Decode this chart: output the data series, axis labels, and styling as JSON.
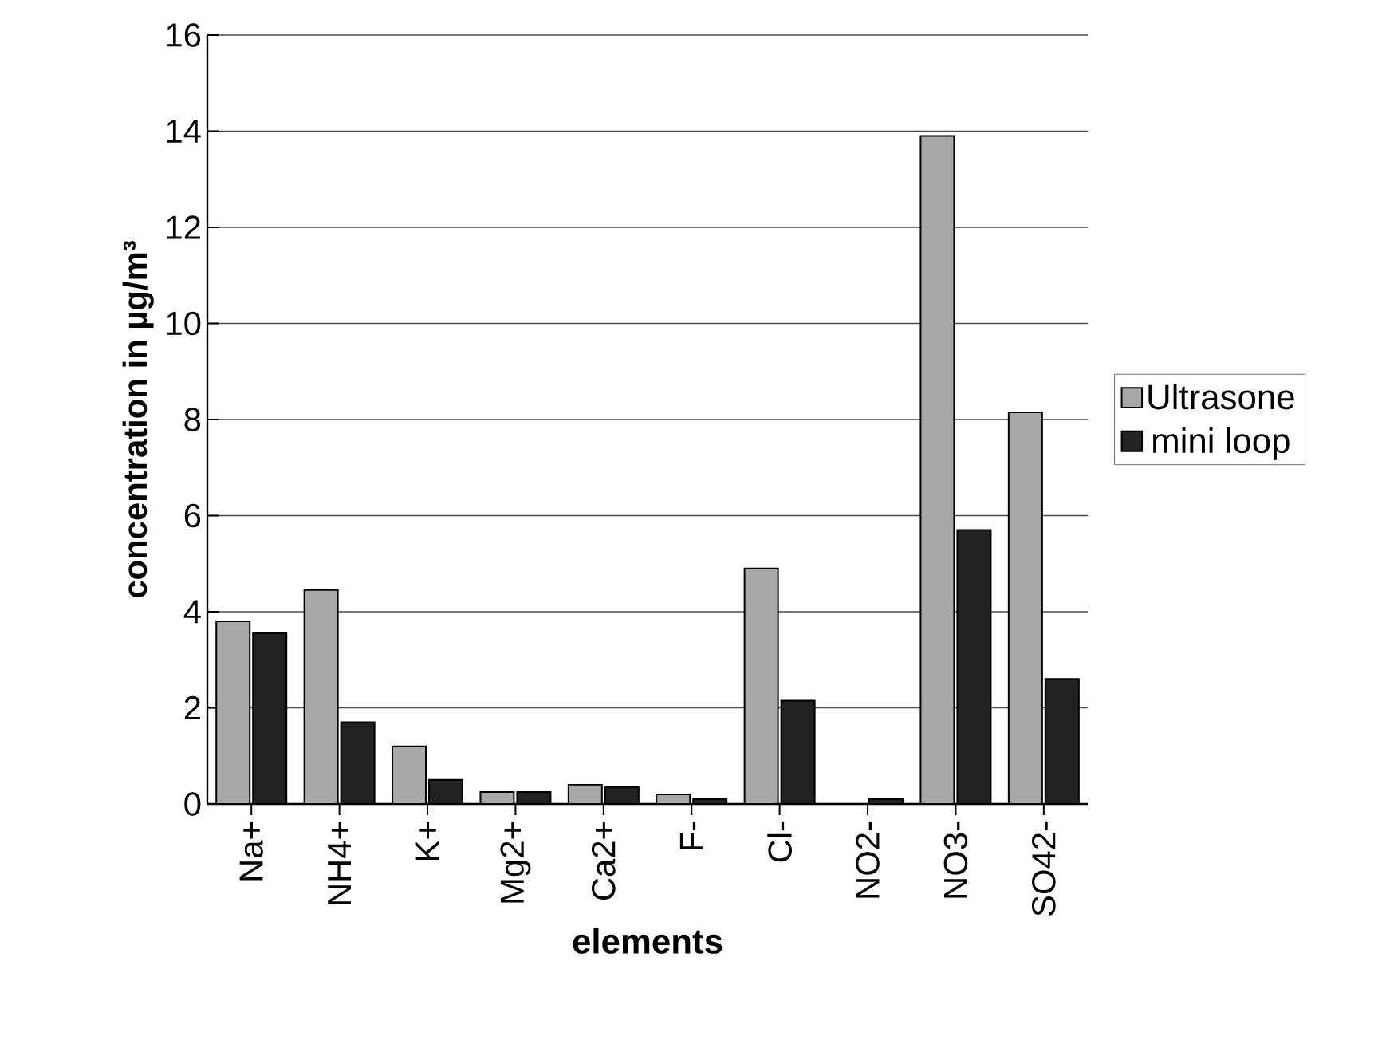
{
  "chart_data": {
    "type": "bar",
    "xlabel": "elements",
    "ylabel": "concentration in µg/m³",
    "categories": [
      "Na+",
      "NH4+",
      "K+",
      "Mg2+",
      "Ca2+",
      "F-",
      "Cl-",
      "NO2-",
      "NO3-",
      "SO42-"
    ],
    "series": [
      {
        "name": "Ultrasone",
        "color": "#a8a8a8",
        "values": [
          3.8,
          4.45,
          1.2,
          0.25,
          0.4,
          0.2,
          4.9,
          null,
          13.9,
          8.15
        ]
      },
      {
        "name": "mini loop",
        "color": "#222222",
        "values": [
          3.55,
          1.7,
          0.5,
          0.25,
          0.35,
          0.1,
          2.15,
          0.1,
          5.7,
          2.6
        ]
      }
    ],
    "ylim": [
      0,
      16
    ],
    "yticks": [
      0,
      2,
      4,
      6,
      8,
      10,
      12,
      14,
      16
    ],
    "grid": "y",
    "legend": "right"
  }
}
